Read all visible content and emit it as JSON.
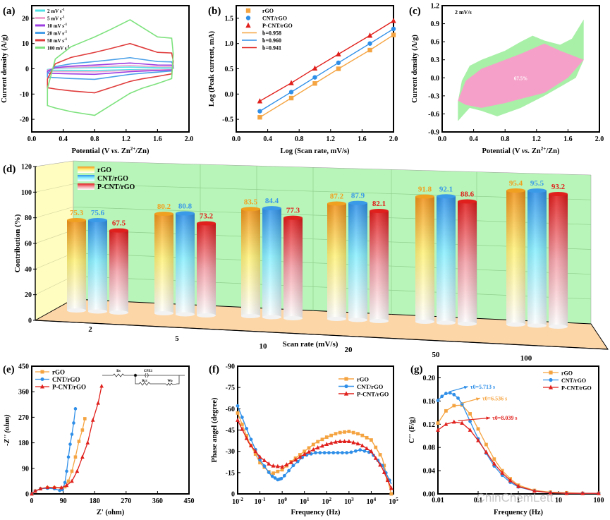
{
  "chart_data": [
    {
      "panel": "(a)",
      "type": "line",
      "title": "",
      "xlabel": "Potential (V vs. Zn2+/Zn)",
      "ylabel": "Current density (A/g)",
      "xlim": [
        0.0,
        2.0
      ],
      "ylim": [
        -25,
        25
      ],
      "xticks": [
        "0.0",
        "0.4",
        "0.8",
        "1.2",
        "1.6",
        "2.0"
      ],
      "yticks": [
        "-20",
        "-10",
        "0",
        "10",
        "20"
      ],
      "legend_position": "top-left",
      "series": [
        {
          "name": "2 mV s-1",
          "color": "#4fe0e6",
          "scale": 0.35
        },
        {
          "name": "5 mV s-1",
          "color": "#f0a8d0",
          "scale": 0.65
        },
        {
          "name": "10 mV s-1",
          "color": "#9b3de0",
          "scale": 1.15
        },
        {
          "name": "20 mV s-1",
          "color": "#4aa0e8",
          "scale": 2.2
        },
        {
          "name": "50 mV s-1",
          "color": "#e03c3c",
          "scale": 5.0
        },
        {
          "name": "100 mV s-1",
          "color": "#7ee27e",
          "scale": 9.7
        }
      ],
      "cv_shape": {
        "potential": [
          0.2,
          0.3,
          0.5,
          0.8,
          1.0,
          1.25,
          1.4,
          1.6,
          1.78,
          1.8
        ],
        "anodic_unit": [
          -0.8,
          0.4,
          0.9,
          1.3,
          1.6,
          2.0,
          1.7,
          1.3,
          1.25,
          0.6
        ],
        "cathodic_unit": [
          -1.5,
          -1.6,
          -1.75,
          -1.9,
          -1.5,
          -1.0,
          -0.8,
          -0.6,
          -0.4,
          0.6
        ]
      }
    },
    {
      "panel": "(b)",
      "type": "scatter",
      "xlabel": "Log (Scan rate, mV/s)",
      "ylabel": "Log (Peak current, mA)",
      "xlim": [
        0.0,
        2.0
      ],
      "ylim": [
        -0.75,
        1.75
      ],
      "xticks": [
        "0.0",
        "0.4",
        "0.8",
        "1.2",
        "1.6",
        "2.0"
      ],
      "yticks": [
        "-0.5",
        "0.0",
        "0.5",
        "1.0",
        "1.5"
      ],
      "legend_position": "top-left",
      "x": [
        0.3,
        0.7,
        1.0,
        1.3,
        1.7,
        2.0
      ],
      "series": [
        {
          "name": "rGO",
          "marker": "square",
          "color": "#f5a442",
          "values": [
            -0.46,
            -0.08,
            0.21,
            0.5,
            0.87,
            1.17
          ],
          "fit_label": "b=0.958"
        },
        {
          "name": "CNT/rGO",
          "marker": "circle",
          "color": "#2f8fe8",
          "values": [
            -0.34,
            0.04,
            0.33,
            0.62,
            1.0,
            1.29
          ],
          "fit_label": "b=0.960"
        },
        {
          "name": "P-CNT/rGO",
          "marker": "triangle",
          "color": "#e0201c",
          "values": [
            -0.14,
            0.22,
            0.51,
            0.79,
            1.16,
            1.45
          ],
          "fit_label": "b=0.941"
        }
      ]
    },
    {
      "panel": "(c)",
      "type": "area",
      "xlabel": "Potential (V vs. Zn2+/Zn)",
      "ylabel": "Current density (A/g)",
      "xlim": [
        0.0,
        2.0
      ],
      "ylim": [
        -0.9,
        1.2
      ],
      "xticks": [
        "0.0",
        "0.4",
        "0.8",
        "1.2",
        "1.6",
        "2.0"
      ],
      "yticks": [
        "-0.9",
        "-0.6",
        "-0.3",
        "0.0",
        "0.3",
        "0.6",
        "0.9",
        "1.2"
      ],
      "annotation": "2 mV/s",
      "fill_label": "67.5%",
      "total": {
        "color": "#a8f0a8",
        "upper_x": [
          0.2,
          0.25,
          0.35,
          0.5,
          0.8,
          1.0,
          1.15,
          1.3,
          1.5,
          1.65,
          1.8
        ],
        "upper_y": [
          -0.4,
          -0.05,
          0.2,
          0.3,
          0.45,
          0.6,
          0.7,
          0.62,
          0.55,
          0.65,
          0.97
        ],
        "lower_x": [
          1.8,
          1.7,
          1.5,
          1.3,
          1.0,
          0.7,
          0.5,
          0.35,
          0.2
        ],
        "lower_y": [
          0.3,
          0.0,
          -0.15,
          -0.3,
          -0.5,
          -0.64,
          -0.55,
          -0.5,
          -0.72
        ]
      },
      "capacitive": {
        "color": "#f5a0c8",
        "upper_x": [
          0.2,
          0.3,
          0.5,
          0.8,
          1.0,
          1.3,
          1.5,
          1.8
        ],
        "upper_y": [
          -0.38,
          -0.05,
          0.15,
          0.3,
          0.4,
          0.57,
          0.45,
          0.3
        ],
        "lower_x": [
          1.8,
          1.6,
          1.3,
          1.0,
          0.8,
          0.5,
          0.3,
          0.2
        ],
        "lower_y": [
          0.3,
          0.0,
          -0.25,
          -0.35,
          -0.42,
          -0.5,
          -0.45,
          -0.38
        ]
      }
    },
    {
      "panel": "(d)",
      "type": "bar",
      "title": "",
      "xlabel": "Scan rate (mV/s)",
      "ylabel": "Contribution (%)",
      "ylim": [
        0,
        120
      ],
      "yticks": [
        "0",
        "20",
        "40",
        "60",
        "80",
        "100",
        "120"
      ],
      "categories": [
        "2",
        "5",
        "10",
        "20",
        "50",
        "100"
      ],
      "legend_position": "top-left",
      "series": [
        {
          "name": "rGO",
          "color": "#f0a020",
          "values": [
            75.3,
            80.2,
            83.5,
            87.2,
            91.8,
            95.4
          ]
        },
        {
          "name": "CNT/rGO",
          "color": "#3a9ae8",
          "values": [
            75.6,
            80.8,
            84.4,
            87.9,
            92.1,
            95.5
          ]
        },
        {
          "name": "P-CNT/rGO",
          "color": "#e0201c",
          "values": [
            67.5,
            73.2,
            77.3,
            82.1,
            88.6,
            93.2
          ]
        }
      ]
    },
    {
      "panel": "(e)",
      "type": "line",
      "xlabel": "Z' (ohm)",
      "ylabel": "-Z'' (ohm)",
      "xlim": [
        0,
        450
      ],
      "ylim": [
        0,
        450
      ],
      "xticks": [
        "0",
        "90",
        "180",
        "270",
        "360",
        "450"
      ],
      "yticks": [
        "0",
        "90",
        "180",
        "270",
        "360",
        "450"
      ],
      "legend_position": "top-left",
      "circuit_labels": [
        "Rs",
        "CPE1",
        "Rct",
        "Wo"
      ],
      "series": [
        {
          "name": "rGO",
          "marker": "square",
          "color": "#f5a442",
          "x": [
            0,
            10,
            25,
            45,
            65,
            85,
            95,
            105,
            115,
            125,
            135,
            145,
            152
          ],
          "y": [
            0,
            10,
            18,
            22,
            22,
            20,
            25,
            45,
            80,
            130,
            185,
            225,
            265
          ]
        },
        {
          "name": "CNT/rGO",
          "marker": "circle",
          "color": "#2f8fe8",
          "x": [
            0,
            10,
            25,
            45,
            65,
            80,
            88,
            95,
            100,
            105,
            110,
            115,
            120,
            125
          ],
          "y": [
            0,
            10,
            18,
            20,
            18,
            12,
            15,
            40,
            80,
            130,
            175,
            210,
            250,
            300
          ]
        },
        {
          "name": "P-CNT/rGO",
          "marker": "triangle",
          "color": "#e0201c",
          "x": [
            0,
            10,
            25,
            45,
            65,
            85,
            100,
            115,
            130,
            145,
            160,
            175,
            190,
            200
          ],
          "y": [
            0,
            10,
            18,
            23,
            23,
            22,
            30,
            45,
            80,
            130,
            180,
            260,
            320,
            380
          ]
        }
      ]
    },
    {
      "panel": "(f)",
      "type": "line",
      "xlabel": "Frequency (Hz)",
      "ylabel": "Phase angel (degree)",
      "xscale": "log",
      "xlim": [
        -2,
        5
      ],
      "ylim": [
        0,
        -90
      ],
      "xticks": [
        "10-2",
        "10-1",
        "100",
        "101",
        "102",
        "103",
        "104",
        "105"
      ],
      "yticks": [
        "0",
        "-15",
        "-30",
        "-45",
        "-60",
        "-75",
        "-90"
      ],
      "legend_position": "top-right",
      "series": [
        {
          "name": "rGO",
          "marker": "square",
          "color": "#f5a442",
          "logx": [
            -2,
            -1.5,
            -1,
            -0.5,
            0,
            0.5,
            1,
            1.5,
            2,
            2.5,
            3,
            3.5,
            4,
            4.5,
            4.9
          ],
          "y": [
            -57,
            -37,
            -22,
            -14,
            -17,
            -24,
            -30,
            -36,
            -40,
            -43,
            -44,
            -42,
            -38,
            -25,
            0
          ]
        },
        {
          "name": "CNT/rGO",
          "marker": "circle",
          "color": "#2f8fe8",
          "logx": [
            -2,
            -1.5,
            -1,
            -0.5,
            -0.2,
            0,
            0.5,
            1,
            1.5,
            2,
            2.5,
            3,
            3.5,
            4,
            4.5,
            4.9
          ],
          "y": [
            -62,
            -42,
            -24,
            -13,
            -10,
            -11,
            -20,
            -27,
            -29,
            -29,
            -29,
            -29,
            -31,
            -29,
            -20,
            -7
          ]
        },
        {
          "name": "P-CNT/rGO",
          "marker": "triangle",
          "color": "#e0201c",
          "logx": [
            -2,
            -1.5,
            -1,
            -0.5,
            0,
            0.5,
            1,
            1.5,
            2,
            2.5,
            3,
            3.5,
            4,
            4.5,
            4.9
          ],
          "y": [
            -52,
            -36,
            -26,
            -20,
            -19,
            -23,
            -28,
            -32,
            -35,
            -37,
            -37,
            -35,
            -30,
            -18,
            -4
          ]
        }
      ]
    },
    {
      "panel": "(g)",
      "type": "line",
      "xlabel": "Frequency (Hz)",
      "ylabel": "C'' (F/g)",
      "xscale": "log",
      "xlim": [
        -2,
        2
      ],
      "ylim": [
        0,
        0.22
      ],
      "xticks": [
        "0.01",
        "0.1",
        "1",
        "10",
        "100"
      ],
      "yticks": [
        "0.00",
        "0.04",
        "0.08",
        "0.12",
        "0.16",
        "0.20"
      ],
      "legend_position": "top-right",
      "annotations": [
        {
          "text": "τ0=5.713 s",
          "color": "#2f8fe8"
        },
        {
          "text": "τ0=6.536 s",
          "color": "#f5a442"
        },
        {
          "text": "τ0=8.039 s",
          "color": "#e0201c"
        }
      ],
      "series": [
        {
          "name": "rGO",
          "marker": "square",
          "color": "#f5a442",
          "logx": [
            -2,
            -1.8,
            -1.6,
            -1.4,
            -1.2,
            -1.0,
            -0.8,
            -0.6,
            -0.4,
            -0.2,
            0,
            0.4,
            0.8,
            1.2,
            1.6,
            2
          ],
          "y": [
            0.122,
            0.143,
            0.152,
            0.153,
            0.138,
            0.112,
            0.085,
            0.06,
            0.04,
            0.026,
            0.015,
            0.006,
            0.003,
            0.002,
            0.001,
            0.001
          ]
        },
        {
          "name": "CNT/rGO",
          "marker": "circle",
          "color": "#2f8fe8",
          "logx": [
            -2,
            -1.9,
            -1.8,
            -1.7,
            -1.6,
            -1.5,
            -1.4,
            -1.2,
            -1.0,
            -0.8,
            -0.6,
            -0.4,
            -0.2,
            0,
            0.4,
            0.8,
            1.2,
            1.6,
            2
          ],
          "y": [
            0.161,
            0.168,
            0.173,
            0.174,
            0.171,
            0.165,
            0.155,
            0.125,
            0.095,
            0.07,
            0.048,
            0.032,
            0.02,
            0.012,
            0.005,
            0.002,
            0.001,
            0.001,
            0.001
          ]
        },
        {
          "name": "P-CNT/rGO",
          "marker": "triangle",
          "color": "#e0201c",
          "logx": [
            -2,
            -1.8,
            -1.6,
            -1.4,
            -1.2,
            -1.0,
            -0.8,
            -0.6,
            -0.4,
            -0.2,
            0,
            0.4,
            0.8,
            1.2,
            1.6,
            2
          ],
          "y": [
            0.11,
            0.12,
            0.124,
            0.122,
            0.11,
            0.092,
            0.072,
            0.052,
            0.036,
            0.023,
            0.013,
            0.005,
            0.002,
            0.001,
            0.001,
            0.001
          ]
        }
      ]
    }
  ],
  "labels": {
    "a": "(a)",
    "b": "(b)",
    "c": "(c)",
    "d": "(d)",
    "e": "(e)",
    "f": "(f)",
    "g": "(g)"
  },
  "watermark": "ChinChemLett"
}
